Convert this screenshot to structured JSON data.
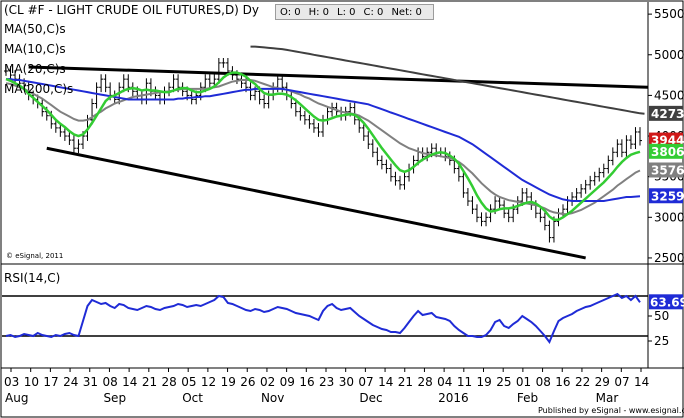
{
  "header": {
    "symbol_title": "(CL #F - LIGHT CRUDE OIL FUTURES,D) Dy"
  },
  "toolbar": {
    "open": "O: 0",
    "high": "H: 0",
    "low": "L: 0",
    "close": "C: 0",
    "net": "Net: 0"
  },
  "copyright": "© eSignal, 2011",
  "footer": "Published by eSignal - www.esignal.com",
  "colors": {
    "ma50": "#1f2bd6",
    "ma10": "#33cc33",
    "ma20": "#808080",
    "ma200": "#404040",
    "rsi": "#1f2bd6",
    "trendline": "#000000",
    "price_up": "#000000",
    "price_down": "#000000",
    "tag_red": "#d01818",
    "tag_green": "#33cc33",
    "tag_gray": "#808080",
    "tag_dark": "#404040",
    "tag_blue": "#1f2bd6"
  },
  "chart_data": [
    {
      "type": "line",
      "panel": "price",
      "series_labels": [
        "MA(50,C)s",
        "MA(10,C)s",
        "MA(20,C)s",
        "MA(200,C)s"
      ],
      "y_ticks": [
        "5500",
        "5000",
        "4500",
        "4000",
        "3500",
        "3000",
        "2500"
      ],
      "ylim": [
        2450,
        5600
      ],
      "x_day_labels": [
        "03",
        "10",
        "17",
        "24",
        "31",
        "08",
        "14",
        "21",
        "28",
        "05",
        "12",
        "19",
        "26",
        "02",
        "09",
        "16",
        "23",
        "30",
        "07",
        "14",
        "21",
        "28",
        "04",
        "11",
        "19",
        "25",
        "01",
        "08",
        "16",
        "22",
        "29",
        "07",
        "14"
      ],
      "x_month_labels": [
        "Aug",
        "Sep",
        "Oct",
        "Nov",
        "Dec",
        "2016",
        "Feb",
        "Mar"
      ],
      "last_value_tags": [
        {
          "label": "4273",
          "series": "MA(200,C)s"
        },
        {
          "label": "3944",
          "series": "close"
        },
        {
          "label": "3806",
          "series": "MA(10,C)s"
        },
        {
          "label": "3576",
          "series": "MA(20,C)s"
        },
        {
          "label": "3259",
          "series": "MA(50,C)s"
        }
      ],
      "close": [
        4800,
        4750,
        4700,
        4650,
        4620,
        4500,
        4450,
        4400,
        4300,
        4250,
        4150,
        4100,
        4050,
        4000,
        3950,
        3850,
        3900,
        4000,
        4200,
        4400,
        4600,
        4700,
        4600,
        4500,
        4450,
        4600,
        4700,
        4600,
        4550,
        4500,
        4450,
        4650,
        4550,
        4500,
        4450,
        4550,
        4600,
        4700,
        4600,
        4550,
        4500,
        4450,
        4500,
        4600,
        4700,
        4650,
        4700,
        4900,
        4900,
        4800,
        4750,
        4700,
        4650,
        4600,
        4500,
        4550,
        4450,
        4400,
        4500,
        4600,
        4700,
        4600,
        4500,
        4400,
        4300,
        4250,
        4200,
        4150,
        4100,
        4050,
        4200,
        4300,
        4350,
        4300,
        4250,
        4300,
        4350,
        4200,
        4100,
        4000,
        3900,
        3800,
        3700,
        3650,
        3600,
        3500,
        3450,
        3400,
        3500,
        3600,
        3700,
        3800,
        3750,
        3800,
        3850,
        3800,
        3800,
        3750,
        3700,
        3600,
        3500,
        3300,
        3200,
        3100,
        3000,
        2950,
        3000,
        3100,
        3200,
        3150,
        3050,
        3000,
        3100,
        3200,
        3300,
        3250,
        3150,
        3050,
        3000,
        2900,
        2750,
        2950,
        3050,
        3100,
        3200,
        3250,
        3300,
        3350,
        3400,
        3450,
        3500,
        3550,
        3600,
        3700,
        3800,
        3900,
        3800,
        3950,
        3900,
        4050,
        3944
      ],
      "ma10": [
        4700,
        4680,
        4650,
        4620,
        4580,
        4520,
        4470,
        4420,
        4370,
        4320,
        4260,
        4200,
        4150,
        4110,
        4060,
        4020,
        4000,
        4020,
        4080,
        4160,
        4250,
        4340,
        4430,
        4480,
        4500,
        4530,
        4560,
        4580,
        4590,
        4580,
        4560,
        4570,
        4560,
        4560,
        4550,
        4540,
        4540,
        4560,
        4580,
        4590,
        4590,
        4560,
        4540,
        4540,
        4560,
        4580,
        4610,
        4660,
        4720,
        4760,
        4780,
        4780,
        4760,
        4730,
        4680,
        4640,
        4580,
        4530,
        4510,
        4510,
        4520,
        4520,
        4510,
        4480,
        4440,
        4390,
        4340,
        4290,
        4240,
        4200,
        4190,
        4200,
        4220,
        4240,
        4250,
        4260,
        4270,
        4260,
        4220,
        4160,
        4090,
        4010,
        3930,
        3850,
        3780,
        3710,
        3640,
        3580,
        3560,
        3580,
        3620,
        3670,
        3710,
        3740,
        3770,
        3790,
        3800,
        3790,
        3760,
        3720,
        3660,
        3570,
        3480,
        3380,
        3270,
        3180,
        3110,
        3070,
        3080,
        3100,
        3110,
        3110,
        3120,
        3140,
        3160,
        3180,
        3190,
        3170,
        3130,
        3080,
        3010,
        2970,
        2970,
        3000,
        3040,
        3080,
        3130,
        3180,
        3230,
        3280,
        3330,
        3380,
        3430,
        3490,
        3550,
        3620,
        3680,
        3730,
        3770,
        3790,
        3806
      ],
      "ma20": [
        4650,
        4640,
        4620,
        4600,
        4580,
        4550,
        4520,
        4490,
        4460,
        4420,
        4380,
        4340,
        4300,
        4270,
        4240,
        4210,
        4190,
        4190,
        4200,
        4230,
        4270,
        4300,
        4340,
        4370,
        4400,
        4420,
        4440,
        4460,
        4480,
        4490,
        4500,
        4510,
        4520,
        4530,
        4540,
        4540,
        4550,
        4560,
        4570,
        4580,
        4580,
        4580,
        4580,
        4580,
        4580,
        4590,
        4600,
        4610,
        4630,
        4650,
        4670,
        4680,
        4690,
        4690,
        4690,
        4680,
        4660,
        4640,
        4620,
        4600,
        4590,
        4580,
        4570,
        4550,
        4530,
        4510,
        4480,
        4460,
        4430,
        4400,
        4380,
        4360,
        4340,
        4320,
        4300,
        4290,
        4280,
        4270,
        4250,
        4220,
        4190,
        4150,
        4110,
        4070,
        4030,
        3990,
        3950,
        3910,
        3880,
        3850,
        3830,
        3810,
        3790,
        3780,
        3770,
        3760,
        3750,
        3740,
        3730,
        3710,
        3680,
        3640,
        3590,
        3540,
        3480,
        3420,
        3370,
        3320,
        3280,
        3250,
        3230,
        3210,
        3200,
        3190,
        3180,
        3170,
        3160,
        3150,
        3130,
        3110,
        3080,
        3060,
        3050,
        3040,
        3040,
        3050,
        3070,
        3090,
        3120,
        3150,
        3180,
        3220,
        3260,
        3300,
        3340,
        3390,
        3430,
        3470,
        3510,
        3550,
        3576
      ],
      "ma50": [
        4700,
        4700,
        4690,
        4690,
        4680,
        4670,
        4660,
        4650,
        4640,
        4630,
        4620,
        4610,
        4600,
        4590,
        4580,
        4570,
        4560,
        4550,
        4540,
        4530,
        4520,
        4510,
        4500,
        4490,
        4480,
        4470,
        4460,
        4450,
        4450,
        4450,
        4450,
        4450,
        4450,
        4450,
        4450,
        4450,
        4450,
        4450,
        4460,
        4460,
        4470,
        4470,
        4480,
        4480,
        4490,
        4490,
        4500,
        4510,
        4520,
        4530,
        4540,
        4550,
        4560,
        4570,
        4570,
        4580,
        4580,
        4580,
        4580,
        4580,
        4580,
        4580,
        4570,
        4560,
        4550,
        4540,
        4530,
        4520,
        4510,
        4500,
        4490,
        4480,
        4470,
        4460,
        4450,
        4440,
        4430,
        4420,
        4410,
        4400,
        4390,
        4370,
        4350,
        4330,
        4310,
        4290,
        4270,
        4250,
        4230,
        4210,
        4190,
        4170,
        4150,
        4130,
        4110,
        4090,
        4070,
        4050,
        4030,
        4010,
        3990,
        3960,
        3930,
        3900,
        3860,
        3820,
        3780,
        3740,
        3700,
        3660,
        3620,
        3580,
        3540,
        3500,
        3460,
        3430,
        3400,
        3370,
        3340,
        3310,
        3280,
        3260,
        3240,
        3220,
        3210,
        3200,
        3200,
        3200,
        3200,
        3200,
        3200,
        3200,
        3200,
        3210,
        3220,
        3230,
        3240,
        3250,
        3250,
        3255,
        3259
      ],
      "ma200": [
        5100,
        5100,
        5095,
        5090,
        5085,
        5080,
        5075,
        5070,
        5060,
        5050,
        5040,
        5030,
        5020,
        5010,
        5000,
        4990,
        4980,
        4970,
        4960,
        4950,
        4940,
        4930,
        4920,
        4910,
        4900,
        4890,
        4880,
        4870,
        4860,
        4850,
        4840,
        4830,
        4820,
        4810,
        4800,
        4790,
        4780,
        4770,
        4760,
        4750,
        4740,
        4730,
        4720,
        4710,
        4700,
        4690,
        4680,
        4670,
        4660,
        4650,
        4640,
        4630,
        4620,
        4610,
        4600,
        4590,
        4580,
        4570,
        4560,
        4550,
        4540,
        4530,
        4520,
        4510,
        4500,
        4490,
        4480,
        4470,
        4460,
        4450,
        4440,
        4430,
        4420,
        4410,
        4400,
        4390,
        4380,
        4370,
        4360,
        4350,
        4340,
        4330,
        4320,
        4310,
        4300,
        4290,
        4280,
        4273
      ],
      "ma200_start_index": 54
    },
    {
      "type": "line",
      "panel": "rsi",
      "series_labels": [
        "RSI(14,C)"
      ],
      "y_ticks": [
        "50",
        "25"
      ],
      "ylim": [
        0,
        100
      ],
      "reference_lines": [
        70,
        30
      ],
      "last_value_tag": "63.69",
      "values": [
        30,
        31,
        29,
        30,
        32,
        31,
        30,
        33,
        31,
        30,
        29,
        31,
        30,
        32,
        33,
        31,
        30,
        45,
        60,
        66,
        64,
        62,
        63,
        60,
        58,
        62,
        61,
        58,
        57,
        56,
        58,
        60,
        59,
        57,
        56,
        58,
        59,
        60,
        62,
        61,
        59,
        60,
        61,
        60,
        62,
        64,
        66,
        70,
        69,
        63,
        62,
        60,
        58,
        56,
        55,
        57,
        56,
        54,
        55,
        57,
        59,
        58,
        57,
        55,
        53,
        52,
        51,
        50,
        48,
        46,
        55,
        60,
        62,
        58,
        56,
        57,
        58,
        54,
        50,
        47,
        44,
        41,
        39,
        37,
        36,
        34,
        34,
        33,
        38,
        44,
        50,
        55,
        51,
        52,
        53,
        49,
        48,
        47,
        45,
        40,
        36,
        33,
        30,
        30,
        29,
        29,
        31,
        36,
        44,
        46,
        40,
        38,
        42,
        45,
        50,
        47,
        44,
        40,
        35,
        30,
        24,
        35,
        45,
        48,
        50,
        52,
        55,
        57,
        59,
        60,
        62,
        64,
        66,
        68,
        70,
        72,
        68,
        70,
        66,
        70,
        63.69
      ]
    }
  ]
}
